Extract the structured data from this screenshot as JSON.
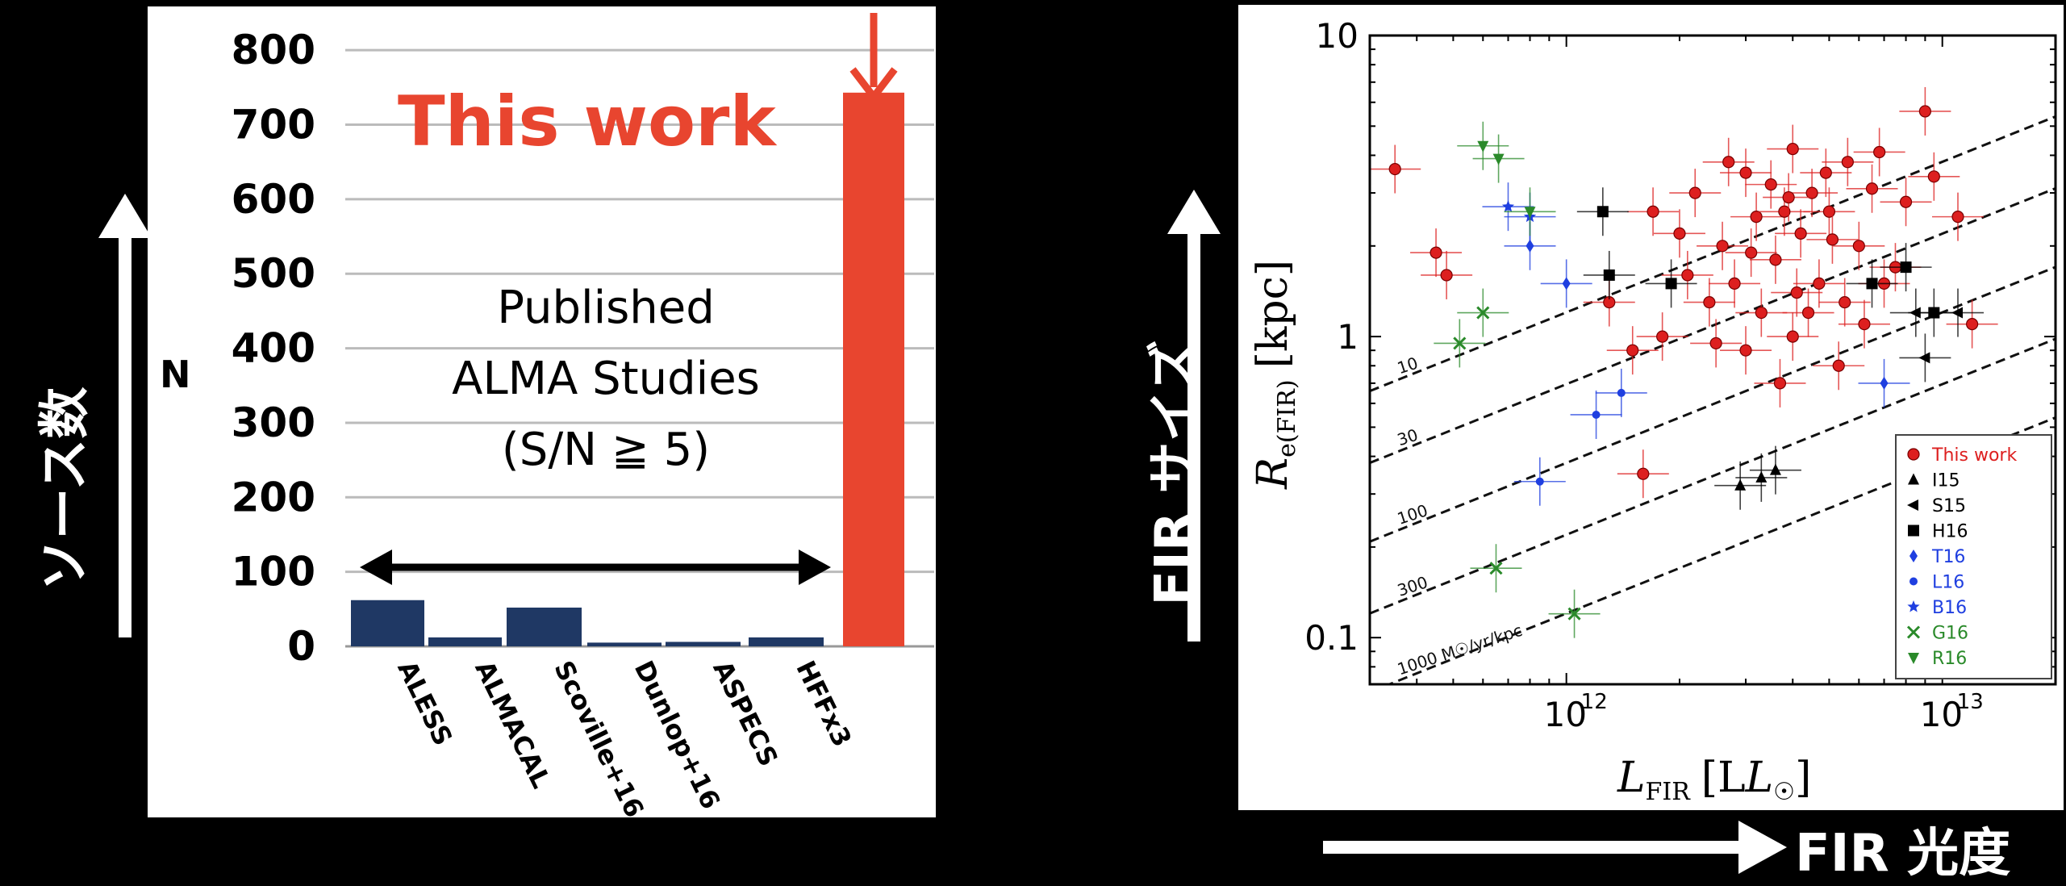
{
  "outer": {
    "left_ylabel": "ソース数",
    "right_ylabel": "FIR サイズ",
    "right_xlabel": "FIR 光度"
  },
  "chart_data": [
    {
      "type": "bar",
      "ylabel": "N",
      "ylim": [
        0,
        850
      ],
      "yticks": [
        0,
        100,
        200,
        300,
        400,
        500,
        600,
        700,
        800
      ],
      "grid": true,
      "categories": [
        "ALESS",
        "ALMACAL",
        "Scoville+16",
        "Dunlop+16",
        "ASPECS",
        "HFFx3",
        "This work"
      ],
      "values": [
        62,
        12,
        52,
        5,
        6,
        12,
        743
      ],
      "colors": [
        "#1f3864",
        "#1f3864",
        "#1f3864",
        "#1f3864",
        "#1f3864",
        "#1f3864",
        "#e8452f"
      ],
      "annotations": {
        "highlight": "This work",
        "group_line1": "Published",
        "group_line2": "ALMA Studies",
        "group_line3": "(S/N ≧ 5)"
      }
    },
    {
      "type": "scatter",
      "xlabel_main": "L",
      "xlabel_sub": "FIR",
      "xlabel_unit": "[L",
      "xlabel_unit_end": "]",
      "ylabel_main": "R",
      "ylabel_sub": "e(FIR)",
      "ylabel_unit": "[kpc]",
      "xscale": "log",
      "yscale": "log",
      "xlim": [
        300000000000.0,
        20000000000000.0
      ],
      "ylim": [
        0.07,
        10
      ],
      "xticks": [
        1000000000000.0,
        10000000000000.0
      ],
      "xtick_labels": [
        "10",
        "10"
      ],
      "xtick_exps": [
        "12",
        "13"
      ],
      "yticks": [
        0.1,
        1,
        10
      ],
      "ytick_labels": [
        "0.1",
        "1",
        "10"
      ],
      "sfr_lines": [
        {
          "label": "10",
          "sigma": 10
        },
        {
          "label": "30",
          "sigma": 30
        },
        {
          "label": "100",
          "sigma": 100
        },
        {
          "label": "300",
          "sigma": 300
        },
        {
          "label": "1000 M",
          "label_rest": "/yr/kpc",
          "sigma": 1000
        }
      ],
      "legend_position": "lower-right",
      "series": [
        {
          "name": "This work",
          "color": "#dd1f1f",
          "marker": "circle",
          "points": [
            [
              350000000000.0,
              3.6
            ],
            [
              450000000000.0,
              1.9
            ],
            [
              480000000000.0,
              1.6
            ],
            [
              1600000000000.0,
              0.35
            ],
            [
              1800000000000.0,
              1.0
            ],
            [
              2000000000000.0,
              2.2
            ],
            [
              2200000000000.0,
              3.0
            ],
            [
              2400000000000.0,
              1.3
            ],
            [
              2600000000000.0,
              2.0
            ],
            [
              2800000000000.0,
              1.5
            ],
            [
              3000000000000.0,
              3.5
            ],
            [
              3000000000000.0,
              0.9
            ],
            [
              3200000000000.0,
              2.5
            ],
            [
              3300000000000.0,
              1.2
            ],
            [
              3500000000000.0,
              3.2
            ],
            [
              3600000000000.0,
              1.8
            ],
            [
              3800000000000.0,
              2.6
            ],
            [
              4000000000000.0,
              1.0
            ],
            [
              4000000000000.0,
              4.2
            ],
            [
              4200000000000.0,
              2.2
            ],
            [
              4500000000000.0,
              3.0
            ],
            [
              4700000000000.0,
              1.5
            ],
            [
              5000000000000.0,
              2.6
            ],
            [
              5300000000000.0,
              0.8
            ],
            [
              5600000000000.0,
              3.8
            ],
            [
              6000000000000.0,
              2.0
            ],
            [
              6500000000000.0,
              3.1
            ],
            [
              7000000000000.0,
              1.5
            ],
            [
              8000000000000.0,
              2.8
            ],
            [
              9000000000000.0,
              5.6
            ],
            [
              11000000000000.0,
              2.5
            ],
            [
              12000000000000.0,
              1.1
            ],
            [
              1300000000000.0,
              1.3
            ],
            [
              1500000000000.0,
              0.9
            ],
            [
              2500000000000.0,
              0.95
            ],
            [
              3700000000000.0,
              0.7
            ],
            [
              2700000000000.0,
              3.8
            ],
            [
              4400000000000.0,
              1.2
            ],
            [
              5500000000000.0,
              1.3
            ],
            [
              6200000000000.0,
              1.1
            ],
            [
              7500000000000.0,
              1.7
            ],
            [
              3100000000000.0,
              1.9
            ],
            [
              3900000000000.0,
              2.9
            ],
            [
              2100000000000.0,
              1.6
            ],
            [
              4900000000000.0,
              3.5
            ],
            [
              9500000000000.0,
              3.4
            ],
            [
              6800000000000.0,
              4.1
            ],
            [
              1700000000000.0,
              2.6
            ],
            [
              5100000000000.0,
              2.1
            ],
            [
              4100000000000.0,
              1.4
            ]
          ]
        },
        {
          "name": "I15",
          "color": "#000000",
          "marker": "triangle-up",
          "points": [
            [
              2900000000000.0,
              0.32
            ],
            [
              3300000000000.0,
              0.34
            ],
            [
              3600000000000.0,
              0.36
            ]
          ]
        },
        {
          "name": "S15",
          "color": "#000000",
          "marker": "triangle-left",
          "points": [
            [
              8500000000000.0,
              1.2
            ],
            [
              11000000000000.0,
              1.2
            ],
            [
              9000000000000.0,
              0.85
            ]
          ]
        },
        {
          "name": "H16",
          "color": "#000000",
          "marker": "square",
          "points": [
            [
              1300000000000.0,
              1.6
            ],
            [
              1900000000000.0,
              1.5
            ],
            [
              8000000000000.0,
              1.7
            ],
            [
              9500000000000.0,
              1.2
            ],
            [
              1250000000000.0,
              2.6
            ],
            [
              6500000000000.0,
              1.5
            ]
          ]
        },
        {
          "name": "T16",
          "color": "#1f3fe0",
          "marker": "diamond",
          "points": [
            [
              800000000000.0,
              2.0
            ],
            [
              1000000000000.0,
              1.5
            ],
            [
              7000000000000.0,
              0.7
            ]
          ]
        },
        {
          "name": "L16",
          "color": "#1f3fe0",
          "marker": "circle-small",
          "points": [
            [
              850000000000.0,
              0.33
            ],
            [
              1200000000000.0,
              0.55
            ],
            [
              1400000000000.0,
              0.65
            ]
          ]
        },
        {
          "name": "B16",
          "color": "#1f3fe0",
          "marker": "star",
          "points": [
            [
              700000000000.0,
              2.7
            ],
            [
              800000000000.0,
              2.5
            ]
          ]
        },
        {
          "name": "G16",
          "color": "#2a8a2a",
          "marker": "x",
          "points": [
            [
              650000000000.0,
              0.17
            ],
            [
              1050000000000.0,
              0.12
            ],
            [
              520000000000.0,
              0.95
            ],
            [
              600000000000.0,
              1.2
            ]
          ]
        },
        {
          "name": "R16",
          "color": "#2a8a2a",
          "marker": "triangle-down",
          "points": [
            [
              600000000000.0,
              4.3
            ],
            [
              660000000000.0,
              3.9
            ],
            [
              800000000000.0,
              2.6
            ]
          ]
        }
      ]
    }
  ]
}
